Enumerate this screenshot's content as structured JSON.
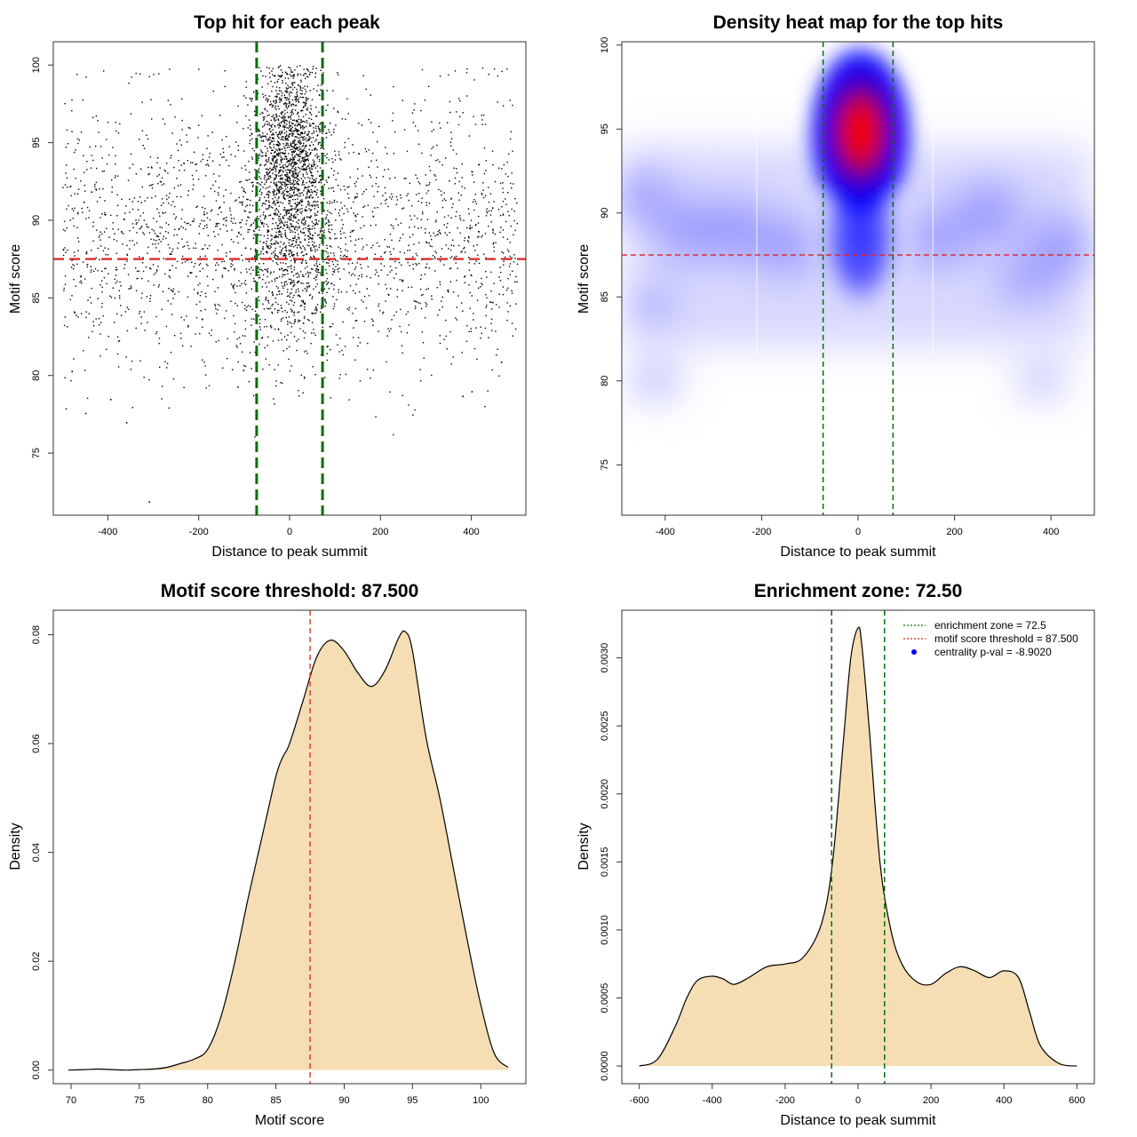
{
  "chart_data": [
    {
      "type": "scatter",
      "title": "Top hit for each peak",
      "xlabel": "Distance to peak summit",
      "ylabel": "Motif score",
      "xlim": [
        -520,
        520
      ],
      "ylim": [
        71,
        101.5
      ],
      "x_ticks": [
        -400,
        -200,
        0,
        200,
        400
      ],
      "y_ticks": [
        75,
        80,
        85,
        90,
        95,
        100
      ],
      "threshold_y": 87.5,
      "zone_x": [
        -72.5,
        72.5
      ],
      "point_count": 4200,
      "clusters": [
        {
          "x_range": [
            -500,
            500
          ],
          "y_mean": 89,
          "y_sd": 4.3,
          "weight": 0.5
        },
        {
          "x_mean": 0,
          "x_sd": 38,
          "y_mean": 94.5,
          "y_sd": 2.8,
          "weight": 0.32
        },
        {
          "x_mean": 0,
          "x_sd": 60,
          "y_mean": 88,
          "y_sd": 3.5,
          "weight": 0.18
        }
      ],
      "outliers": [
        [
          -310,
          71.9
        ],
        [
          -115,
          79.3
        ],
        [
          -395,
          78.5
        ],
        [
          -450,
          77.6
        ],
        [
          -360,
          77.0
        ],
        [
          380,
          78.7
        ],
        [
          400,
          79.0
        ],
        [
          465,
          80.9
        ],
        [
          -480,
          80.3
        ]
      ],
      "colors": {
        "points": "#000000",
        "threshold": "#dd2222",
        "zone": "#0a6e0a"
      }
    },
    {
      "type": "heatmap",
      "title": "Density heat map for the top hits",
      "xlabel": "Distance to peak summit",
      "ylabel": "Motif score",
      "xlim": [
        -490,
        490
      ],
      "ylim": [
        72,
        100.2
      ],
      "x_ticks": [
        -400,
        -200,
        0,
        200,
        400
      ],
      "y_ticks": [
        75,
        80,
        85,
        90,
        95,
        100
      ],
      "threshold_y": 87.5,
      "zone_x": [
        -72.5,
        72.5
      ],
      "peak_center": [
        5,
        94.8
      ],
      "colors": {
        "low": "#ffffff",
        "mid": "#0000ff",
        "high": "#ff0000",
        "threshold": "#dd2222",
        "zone": "#0a6e0a"
      }
    },
    {
      "type": "area",
      "title": "Motif score threshold: 87.500",
      "xlabel": "Motif score",
      "ylabel": "Density",
      "xlim": [
        68.7,
        103.3
      ],
      "ylim": [
        -0.0025,
        0.0845
      ],
      "x_ticks": [
        70,
        75,
        80,
        85,
        90,
        95,
        100
      ],
      "y_ticks": [
        0.0,
        0.02,
        0.04,
        0.06,
        0.08
      ],
      "y_tick_labels": [
        "0.00",
        "0.02",
        "0.04",
        "0.06",
        "0.08"
      ],
      "threshold_x": 87.5,
      "x": [
        69.8,
        71,
        72,
        73,
        74,
        75,
        76,
        77,
        78,
        79,
        80,
        81,
        82,
        83,
        84,
        85,
        85.5,
        86,
        87,
        88,
        89,
        90,
        91,
        92,
        93,
        94,
        94.5,
        95,
        96,
        97,
        98,
        99,
        100,
        101,
        102
      ],
      "y": [
        0.0,
        0.0001,
        0.0002,
        0.0001,
        0.0,
        0.0001,
        0.0002,
        0.0005,
        0.0012,
        0.002,
        0.0038,
        0.01,
        0.02,
        0.032,
        0.043,
        0.054,
        0.0575,
        0.06,
        0.068,
        0.076,
        0.079,
        0.077,
        0.073,
        0.0705,
        0.0735,
        0.0795,
        0.0805,
        0.077,
        0.061,
        0.05,
        0.037,
        0.024,
        0.012,
        0.003,
        0.0005
      ],
      "colors": {
        "fill": "#f5deb3",
        "line": "#000000",
        "threshold": "#dd2222"
      }
    },
    {
      "type": "area",
      "title": "Enrichment zone: 72.50",
      "xlabel": "Distance to peak summit",
      "ylabel": "Density",
      "xlim": [
        -648,
        648
      ],
      "ylim": [
        -0.00013,
        0.00335
      ],
      "x_ticks": [
        -600,
        -400,
        -200,
        0,
        200,
        400,
        600
      ],
      "y_ticks": [
        0.0,
        0.0005,
        0.001,
        0.0015,
        0.002,
        0.0025,
        0.003
      ],
      "y_tick_labels": [
        "0.0000",
        "0.0005",
        "0.0010",
        "0.0015",
        "0.0020",
        "0.0025",
        "0.0030"
      ],
      "zone_x": [
        -72.5,
        72.5
      ],
      "x": [
        -600,
        -550,
        -500,
        -470,
        -440,
        -400,
        -370,
        -340,
        -300,
        -250,
        -200,
        -150,
        -100,
        -70,
        -40,
        -20,
        0,
        10,
        30,
        60,
        90,
        120,
        160,
        200,
        240,
        280,
        320,
        360,
        400,
        440,
        470,
        500,
        550,
        600
      ],
      "y": [
        0.0,
        5e-05,
        0.0003,
        0.0005,
        0.00063,
        0.00066,
        0.00064,
        0.0006,
        0.00065,
        0.00073,
        0.00075,
        0.0008,
        0.00105,
        0.0015,
        0.0024,
        0.003,
        0.00322,
        0.0031,
        0.0025,
        0.0015,
        0.001,
        0.00075,
        0.00062,
        0.0006,
        0.00068,
        0.00073,
        0.0007,
        0.00065,
        0.0007,
        0.00065,
        0.0004,
        0.00015,
        2e-05,
        0.0
      ],
      "legend": {
        "position": "top-right",
        "entries": [
          "enrichment zone = 72.5",
          "motif score threshold = 87.500",
          "centrality p-val = -8.9020"
        ]
      },
      "colors": {
        "fill": "#f5deb3",
        "line": "#000000",
        "zone": "#0a6e0a",
        "threshold": "#dd2222",
        "pval_marker": "#0000ff"
      }
    }
  ]
}
